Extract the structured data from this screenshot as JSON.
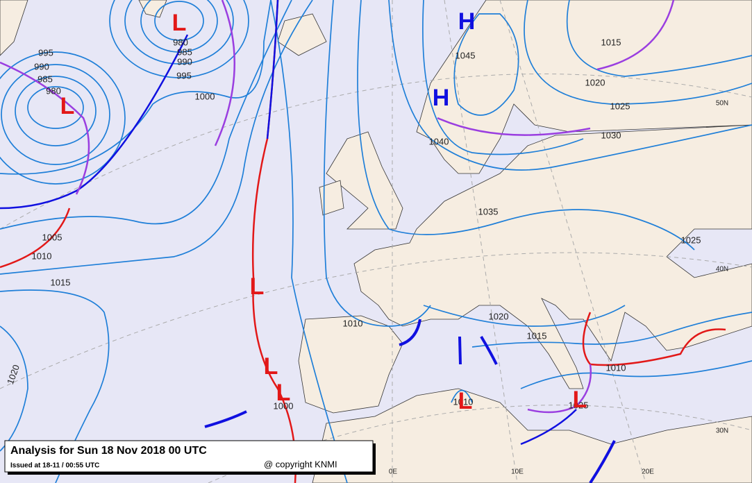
{
  "title_box": {
    "title": "Analysis for Sun 18 Nov 2018 00 UTC",
    "issued": "Issued at 18-11 / 00:55 UTC",
    "copyright": "@ copyright KNMI"
  },
  "isobar_labels": [
    "995",
    "990",
    "985",
    "980",
    "980",
    "985",
    "990",
    "995",
    "1000",
    "1005",
    "1010",
    "1015",
    "1020",
    "1010",
    "1020",
    "1015",
    "1035",
    "1040",
    "1045",
    "1015",
    "1020",
    "1025",
    "1030",
    "1025",
    "1010",
    "1025",
    "1000",
    "1010"
  ],
  "pressure_centers": [
    "H",
    "H",
    "L",
    "L",
    "L",
    "L",
    "L",
    "L",
    "L"
  ],
  "grid_labels": [
    "50N",
    "40N",
    "30N",
    "0E",
    "10E",
    "20E"
  ]
}
